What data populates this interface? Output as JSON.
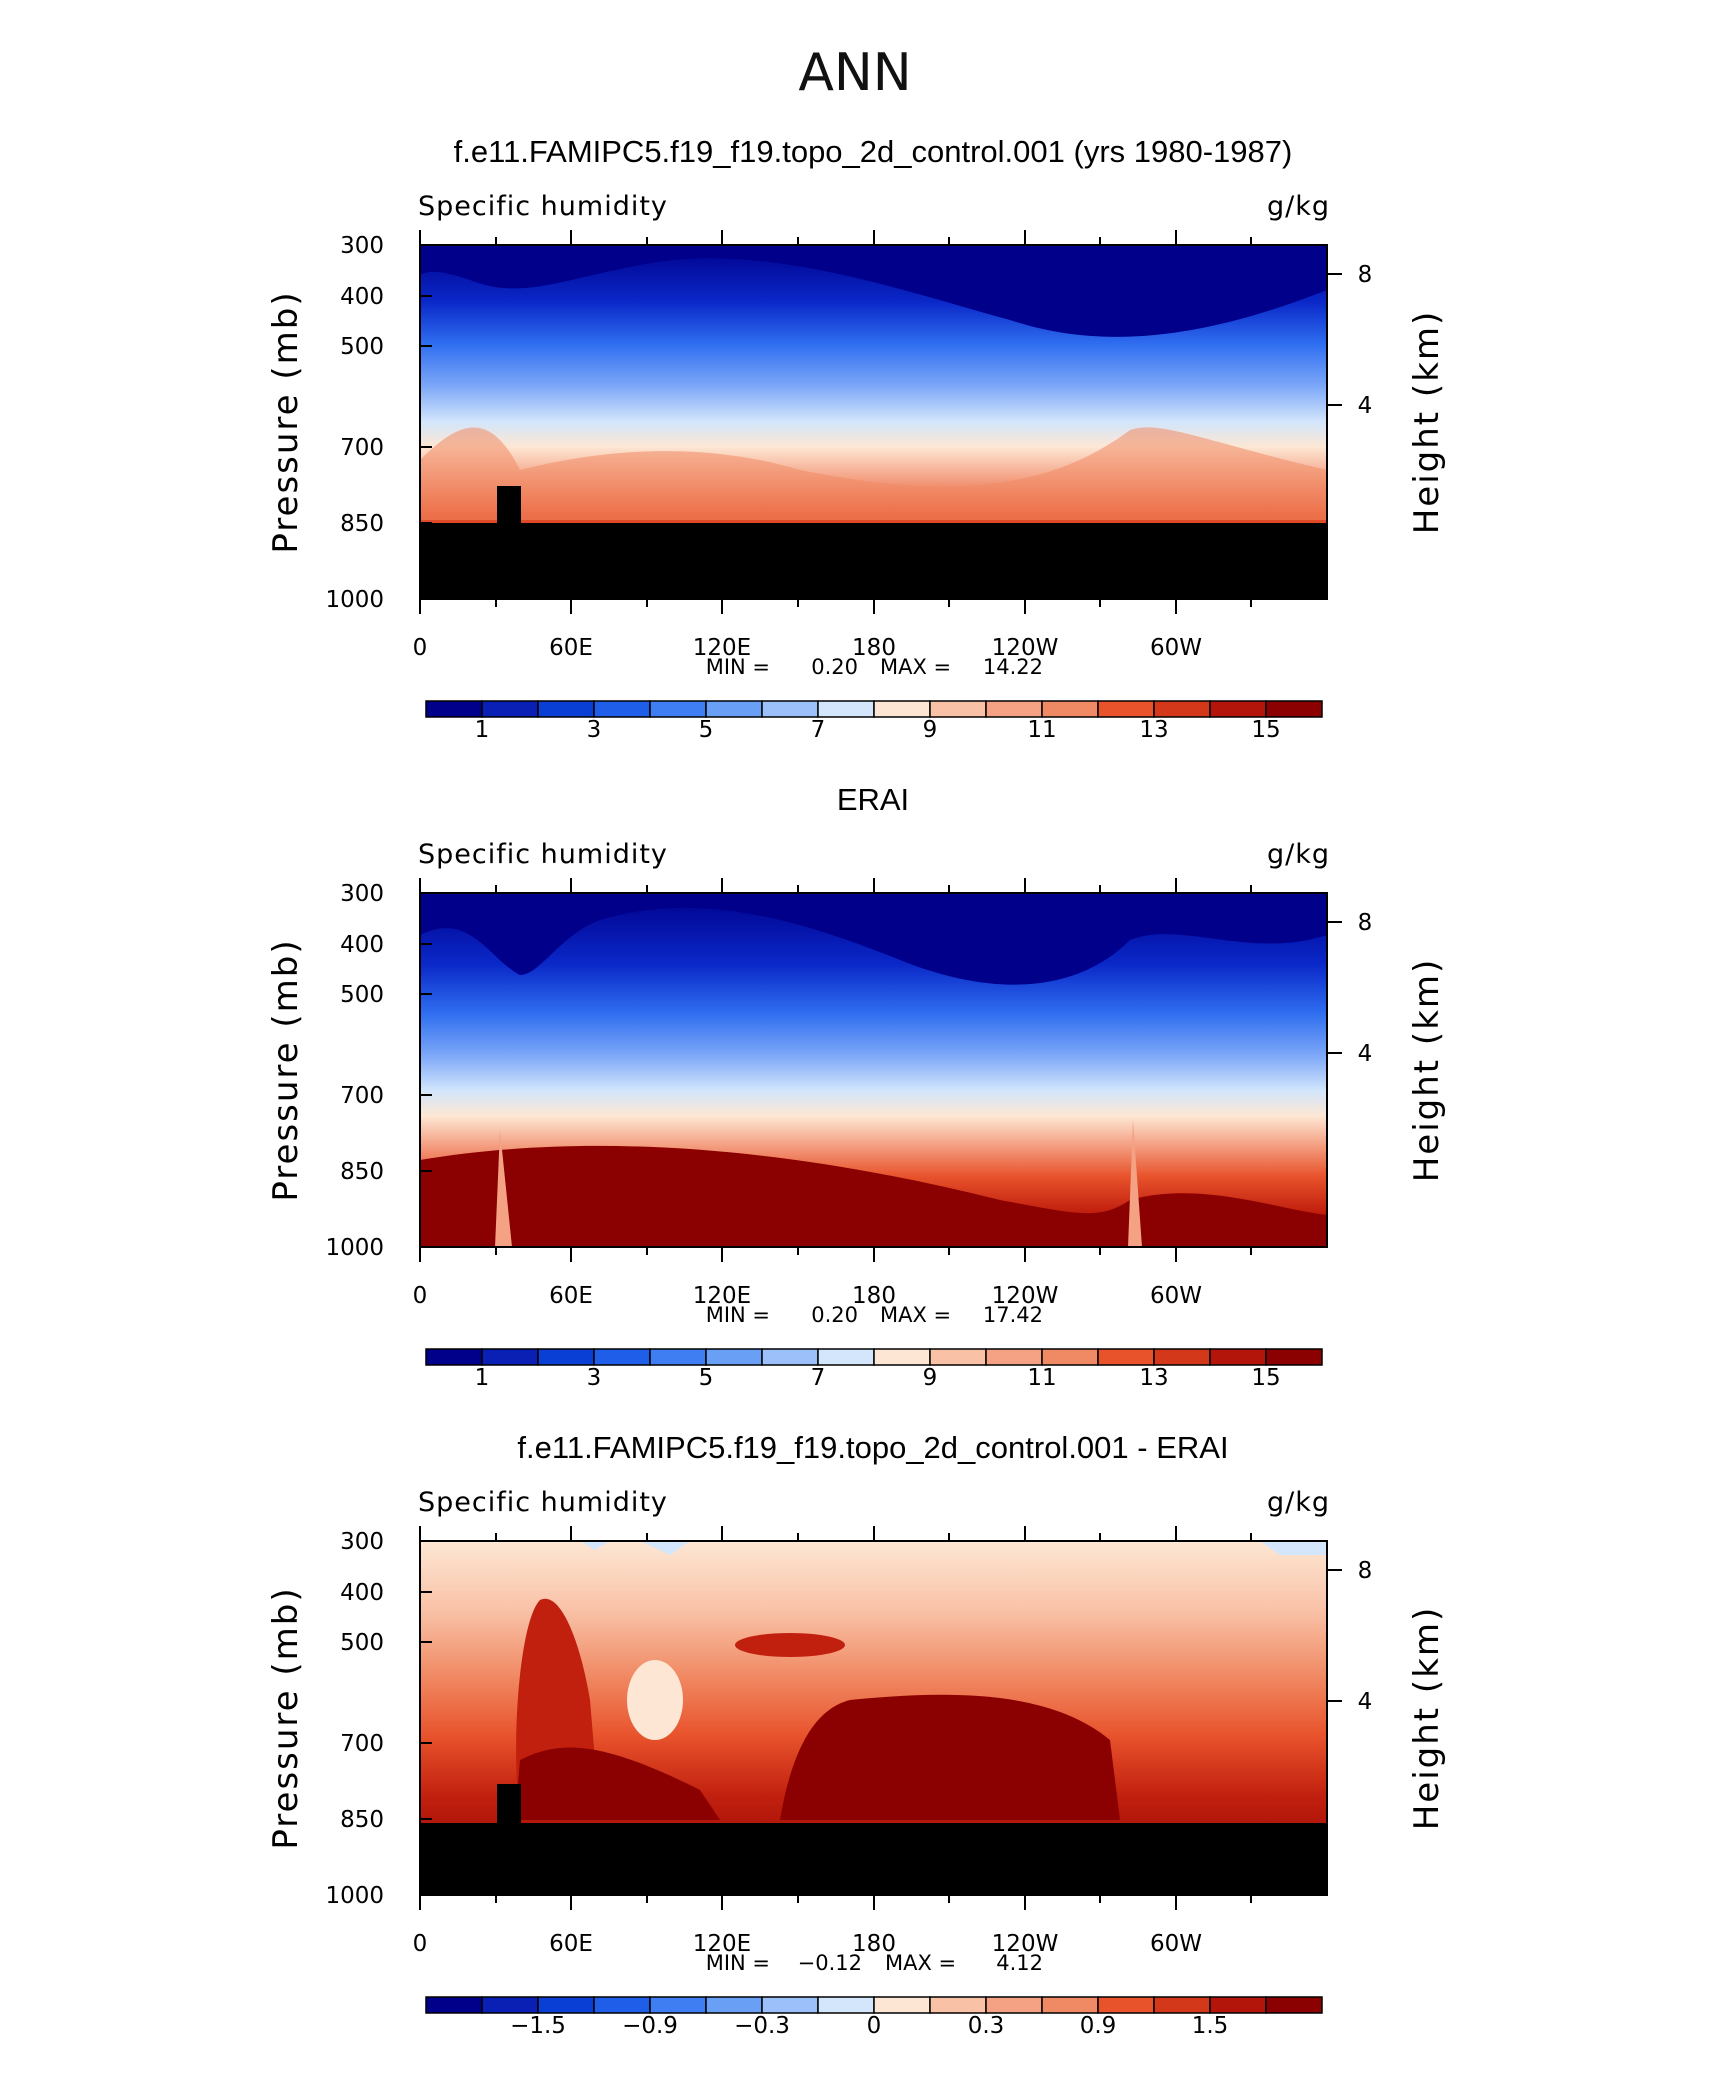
{
  "main_title": "ANN",
  "chart_data": [
    {
      "type": "contour",
      "title": "f.e11.FAMIPC5.f19_f19.topo_2d_control.001 (yrs 1980-1987)",
      "left_label": "Specific humidity",
      "right_label": "g/kg",
      "ylabel": "Pressure (mb)",
      "y2label": "Height (km)",
      "y_ticks": [
        "300",
        "400",
        "500",
        "700",
        "850",
        "1000"
      ],
      "y2_ticks": [
        "8",
        "4"
      ],
      "x_ticks": [
        "0",
        "60E",
        "120E",
        "180",
        "120W",
        "60W"
      ],
      "min_label": "MIN =",
      "min": "0.20",
      "max_label": "MAX =",
      "max": "14.22",
      "colorbar_labels": [
        "1",
        "3",
        "5",
        "7",
        "9",
        "11",
        "13",
        "15"
      ],
      "masked": true
    },
    {
      "type": "contour",
      "title": "ERAI",
      "left_label": "Specific humidity",
      "right_label": "g/kg",
      "ylabel": "Pressure (mb)",
      "y2label": "Height (km)",
      "y_ticks": [
        "300",
        "400",
        "500",
        "700",
        "850",
        "1000"
      ],
      "y2_ticks": [
        "8",
        "4"
      ],
      "x_ticks": [
        "0",
        "60E",
        "120E",
        "180",
        "120W",
        "60W"
      ],
      "min_label": "MIN =",
      "min": "0.20",
      "max_label": "MAX =",
      "max": "17.42",
      "colorbar_labels": [
        "1",
        "3",
        "5",
        "7",
        "9",
        "11",
        "13",
        "15"
      ],
      "masked": false
    },
    {
      "type": "contour",
      "title": "f.e11.FAMIPC5.f19_f19.topo_2d_control.001 - ERAI",
      "left_label": "Specific humidity",
      "right_label": "g/kg",
      "ylabel": "Pressure (mb)",
      "y2label": "Height (km)",
      "y_ticks": [
        "300",
        "400",
        "500",
        "700",
        "850",
        "1000"
      ],
      "y2_ticks": [
        "8",
        "4"
      ],
      "x_ticks": [
        "0",
        "60E",
        "120E",
        "180",
        "120W",
        "60W"
      ],
      "min_label": "MIN =",
      "min": "−0.12",
      "max_label": "MAX =",
      "max": "4.12",
      "colorbar_labels": [
        "−1.5",
        "−0.9",
        "−0.3",
        "0",
        "0.3",
        "0.9",
        "1.5"
      ],
      "masked": true
    }
  ]
}
